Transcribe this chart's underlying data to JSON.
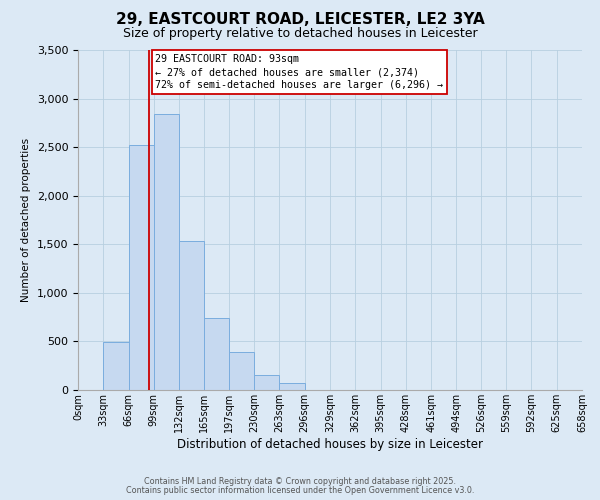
{
  "title": "29, EASTCOURT ROAD, LEICESTER, LE2 3YA",
  "subtitle": "Size of property relative to detached houses in Leicester",
  "xlabel": "Distribution of detached houses by size in Leicester",
  "ylabel": "Number of detached properties",
  "bin_edges": [
    0,
    33,
    66,
    99,
    132,
    165,
    197,
    230,
    263,
    296,
    329,
    362,
    395,
    428,
    461,
    494,
    526,
    559,
    592,
    625,
    658
  ],
  "bin_labels": [
    "0sqm",
    "33sqm",
    "66sqm",
    "99sqm",
    "132sqm",
    "165sqm",
    "197sqm",
    "230sqm",
    "263sqm",
    "296sqm",
    "329sqm",
    "362sqm",
    "395sqm",
    "428sqm",
    "461sqm",
    "494sqm",
    "526sqm",
    "559sqm",
    "592sqm",
    "625sqm",
    "658sqm"
  ],
  "bar_heights": [
    0,
    490,
    2520,
    2840,
    1530,
    740,
    390,
    150,
    75,
    0,
    0,
    0,
    0,
    0,
    0,
    0,
    0,
    0,
    0,
    0
  ],
  "bar_color": "#c6d9f0",
  "bar_edge_color": "#7aadde",
  "property_size": 93,
  "vline_color": "#cc0000",
  "annotation_title": "29 EASTCOURT ROAD: 93sqm",
  "annotation_line1": "← 27% of detached houses are smaller (2,374)",
  "annotation_line2": "72% of semi-detached houses are larger (6,296) →",
  "annotation_box_color": "#ffffff",
  "annotation_box_edge_color": "#cc0000",
  "ylim": [
    0,
    3500
  ],
  "yticks": [
    0,
    500,
    1000,
    1500,
    2000,
    2500,
    3000,
    3500
  ],
  "bg_color": "#dce9f5",
  "footer1": "Contains HM Land Registry data © Crown copyright and database right 2025.",
  "footer2": "Contains public sector information licensed under the Open Government Licence v3.0.",
  "title_fontsize": 11,
  "subtitle_fontsize": 9,
  "grid_color": "#b8cfe0"
}
